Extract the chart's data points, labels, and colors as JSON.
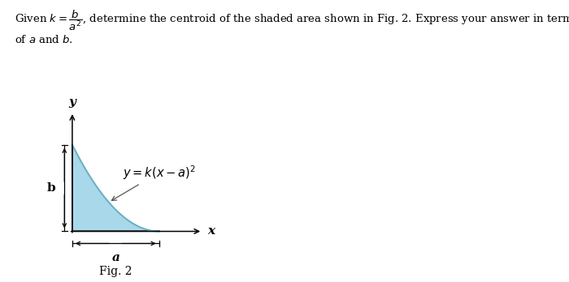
{
  "background_color": "#ffffff",
  "shaded_color": "#a8d8ea",
  "shaded_edge_color": "#6aafc0",
  "header_line1": "Given $k = \\dfrac{b}{a^2}$, determine the centroid of the shaded area shown in Fig. 2. Express your answer in terms",
  "header_line2": "of $a$ and $b$.",
  "curve_label": "$y = k(x-a)^2$",
  "xlabel": "x",
  "ylabel": "y",
  "fig_label": "Fig. 2",
  "dim_a": "a",
  "dim_b": "b",
  "fig_width": 7.0,
  "fig_height": 3.48
}
